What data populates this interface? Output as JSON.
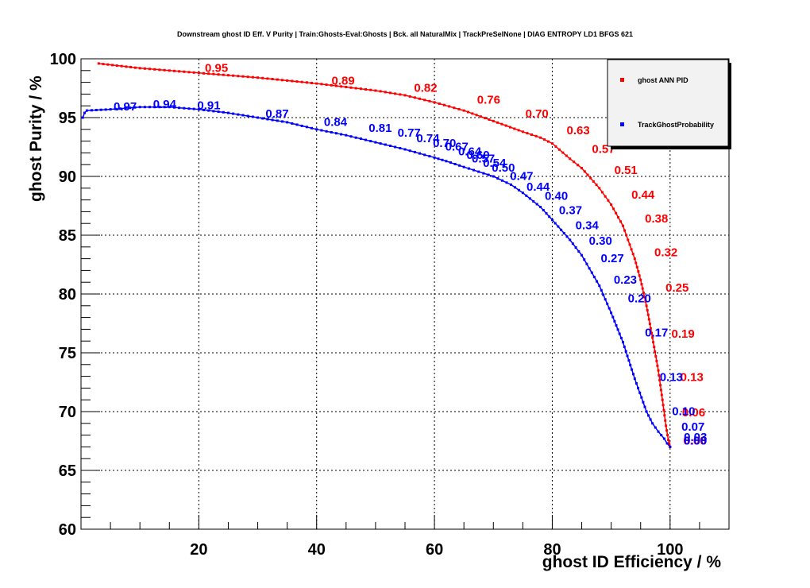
{
  "chart_data": {
    "type": "line",
    "title": "Downstream ghost ID Eff. V Purity | Train:Ghosts-Eval:Ghosts | Bck. all NaturalMix | TrackPreSelNone | DIAG ENTROPY LD1 BFGS 621",
    "xlabel": "ghost ID Efficiency / %",
    "ylabel": "ghost Purity / %",
    "xlim": [
      0,
      110
    ],
    "ylim": [
      60,
      100
    ],
    "x_ticks": [
      "20",
      "40",
      "60",
      "80",
      "100"
    ],
    "y_ticks": [
      "60",
      "65",
      "70",
      "75",
      "80",
      "85",
      "90",
      "95",
      "100"
    ],
    "grid": true,
    "legend_position": "top-right",
    "series": [
      {
        "name": "ghost ANN PID",
        "color": "#ff0000",
        "x": [
          3,
          10,
          20,
          30,
          40,
          50,
          55,
          60,
          65,
          70,
          75,
          78,
          80,
          83,
          85,
          88,
          90,
          92,
          94,
          95,
          96,
          97,
          98,
          98.7,
          99.3,
          99.7,
          100
        ],
        "y": [
          99.6,
          99.2,
          98.8,
          98.4,
          97.9,
          97.3,
          96.9,
          96.3,
          95.6,
          94.7,
          93.8,
          93.3,
          92.8,
          91.5,
          90.7,
          89.0,
          87.6,
          85.8,
          83.0,
          81.2,
          79.0,
          76.3,
          73.5,
          71.0,
          68.8,
          67.6,
          67.0
        ],
        "cut_labels": [
          {
            "text": "0.95",
            "x": 23,
            "y": 99.3
          },
          {
            "text": "0.89",
            "x": 44.5,
            "y": 98.2
          },
          {
            "text": "0.82",
            "x": 58.5,
            "y": 97.6
          },
          {
            "text": "0.76",
            "x": 69.2,
            "y": 96.6
          },
          {
            "text": "0.70",
            "x": 77.4,
            "y": 95.4
          },
          {
            "text": "0.63",
            "x": 84.4,
            "y": 94.0
          },
          {
            "text": "0.57",
            "x": 88.7,
            "y": 92.4
          },
          {
            "text": "0.51",
            "x": 92.5,
            "y": 90.6
          },
          {
            "text": "0.44",
            "x": 95.4,
            "y": 88.5
          },
          {
            "text": "0.38",
            "x": 97.7,
            "y": 86.5
          },
          {
            "text": "0.32",
            "x": 99.3,
            "y": 83.6
          },
          {
            "text": "0.25",
            "x": 101.2,
            "y": 80.6
          },
          {
            "text": "0.19",
            "x": 102.2,
            "y": 76.7
          },
          {
            "text": "0.13",
            "x": 103.7,
            "y": 73.0
          },
          {
            "text": "0.06",
            "x": 104.0,
            "y": 70.0
          },
          {
            "text": "0.00",
            "x": 104.2,
            "y": 67.6
          }
        ]
      },
      {
        "name": "TrackGhostProbability",
        "color": "#0000ff",
        "x": [
          0.3,
          0.6,
          1,
          5,
          10,
          15,
          20,
          25,
          30,
          35,
          40,
          45,
          50,
          55,
          60,
          62,
          65,
          70,
          73,
          75,
          78,
          80,
          83,
          85,
          88,
          90,
          92,
          94,
          96,
          97,
          98,
          99,
          99.5,
          100
        ],
        "y": [
          95.0,
          95.4,
          95.6,
          95.7,
          95.9,
          95.9,
          95.7,
          95.4,
          95.0,
          94.6,
          94.0,
          93.5,
          92.9,
          92.3,
          91.6,
          91.3,
          90.8,
          90.0,
          89.3,
          88.6,
          87.4,
          86.3,
          84.6,
          83.3,
          80.7,
          78.4,
          75.9,
          72.8,
          70.0,
          69.0,
          68.3,
          67.7,
          67.3,
          67.0
        ],
        "cut_labels": [
          {
            "text": "0.97",
            "x": 7.5,
            "y": 96.0
          },
          {
            "text": "0.94",
            "x": 14.2,
            "y": 96.2
          },
          {
            "text": "0.91",
            "x": 21.7,
            "y": 96.1
          },
          {
            "text": "0.87",
            "x": 33.3,
            "y": 95.4
          },
          {
            "text": "0.84",
            "x": 43.2,
            "y": 94.7
          },
          {
            "text": "0.81",
            "x": 50.8,
            "y": 94.2
          },
          {
            "text": "0.77",
            "x": 55.7,
            "y": 93.8
          },
          {
            "text": "0.74",
            "x": 58.9,
            "y": 93.3
          },
          {
            "text": "0.70",
            "x": 61.7,
            "y": 92.9
          },
          {
            "text": "0.67",
            "x": 63.8,
            "y": 92.6
          },
          {
            "text": "0.64",
            "x": 66.0,
            "y": 92.2
          },
          {
            "text": "0.60",
            "x": 67.4,
            "y": 91.9
          },
          {
            "text": "0.57",
            "x": 68.3,
            "y": 91.6
          },
          {
            "text": "0.54",
            "x": 70.2,
            "y": 91.2
          },
          {
            "text": "0.50",
            "x": 71.7,
            "y": 90.8
          },
          {
            "text": "0.47",
            "x": 74.8,
            "y": 90.1
          },
          {
            "text": "0.44",
            "x": 77.6,
            "y": 89.2
          },
          {
            "text": "0.40",
            "x": 80.7,
            "y": 88.4
          },
          {
            "text": "0.37",
            "x": 83.1,
            "y": 87.2
          },
          {
            "text": "0.34",
            "x": 85.9,
            "y": 85.9
          },
          {
            "text": "0.30",
            "x": 88.2,
            "y": 84.6
          },
          {
            "text": "0.27",
            "x": 90.2,
            "y": 83.1
          },
          {
            "text": "0.23",
            "x": 92.4,
            "y": 81.3
          },
          {
            "text": "0.20",
            "x": 94.8,
            "y": 79.7
          },
          {
            "text": "0.17",
            "x": 97.7,
            "y": 76.8
          },
          {
            "text": "0.13",
            "x": 100.2,
            "y": 73.0
          },
          {
            "text": "0.10",
            "x": 102.3,
            "y": 70.1
          },
          {
            "text": "0.07",
            "x": 103.9,
            "y": 68.8
          },
          {
            "text": "0.03",
            "x": 104.3,
            "y": 67.9
          },
          {
            "text": "0.00",
            "x": 104.3,
            "y": 67.6
          }
        ]
      }
    ]
  }
}
